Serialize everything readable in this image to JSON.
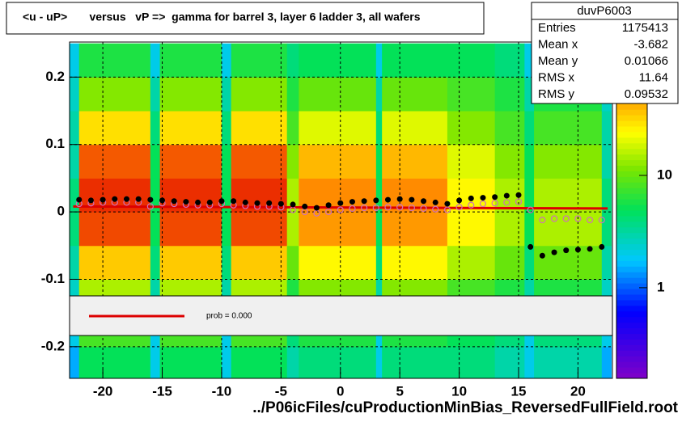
{
  "chart_data": {
    "type": "heatmap-profile",
    "title": "<u - uP>       versus   vP =>  gamma for barrel 3, layer 6 ladder 3, all wafers",
    "x_label": "../P06icFiles/cuProductionMinBias_ReversedFullField.root",
    "xlim": [
      -22.8,
      22.9
    ],
    "ylim": [
      -0.247,
      0.252
    ],
    "xticks": [
      -20,
      -15,
      -10,
      -5,
      0,
      5,
      10,
      15,
      20
    ],
    "yticks": [
      -0.2,
      -0.1,
      0,
      0.1,
      0.2
    ],
    "grid": true,
    "x_edges": [
      -22.8,
      -22,
      -16,
      -15.2,
      -10,
      -9.2,
      -4.5,
      -3.5,
      3,
      3.5,
      9,
      13,
      15.5,
      16.3,
      22,
      22.8
    ],
    "y_edges": [
      -0.25,
      -0.2,
      -0.15,
      -0.1,
      -0.05,
      0,
      0.05,
      0.1,
      0.15,
      0.2,
      0.25
    ],
    "z": [
      [
        1.5,
        2,
        2.5,
        3,
        4,
        4,
        3,
        3,
        2.5,
        2
      ],
      [
        5,
        8,
        15,
        35,
        90,
        110,
        80,
        30,
        12,
        6
      ],
      [
        2,
        2,
        3,
        4,
        5,
        5,
        5,
        4,
        3,
        2
      ],
      [
        5,
        8,
        15,
        35,
        90,
        110,
        80,
        30,
        12,
        6
      ],
      [
        2,
        2,
        3,
        4,
        5,
        5,
        5,
        4,
        3,
        2
      ],
      [
        5,
        8,
        15,
        35,
        90,
        110,
        80,
        30,
        12,
        6
      ],
      [
        3,
        4,
        6,
        10,
        15,
        15,
        12,
        8,
        6,
        4
      ],
      [
        4,
        6,
        12,
        25,
        50,
        55,
        40,
        20,
        10,
        5
      ],
      [
        2,
        2,
        3,
        4,
        5,
        5,
        5,
        4,
        3,
        2
      ],
      [
        4,
        6,
        12,
        25,
        50,
        55,
        40,
        20,
        10,
        5
      ],
      [
        4,
        5,
        8,
        15,
        25,
        25,
        20,
        12,
        8,
        5
      ],
      [
        3,
        4,
        6,
        10,
        15,
        15,
        12,
        8,
        6,
        4
      ],
      [
        2,
        2,
        3,
        4,
        5,
        5,
        5,
        4,
        3,
        2
      ],
      [
        3,
        4,
        6,
        10,
        15,
        15,
        12,
        8,
        6,
        4
      ],
      [
        1.5,
        2,
        2.5,
        3,
        4,
        4,
        3,
        3,
        2.5,
        2
      ]
    ],
    "zlim": [
      0.156,
      154
    ],
    "zticks": [
      1,
      10
    ],
    "log_z": true,
    "x": [
      -22,
      -21,
      -20,
      -19,
      -18,
      -17,
      -16,
      -15,
      -14,
      -13,
      -12,
      -11,
      -10,
      -9,
      -8,
      -7,
      -6,
      -5,
      -4,
      -3,
      -2,
      -1,
      0,
      1,
      2,
      3,
      4,
      5,
      6,
      7,
      8,
      9,
      10,
      11,
      12,
      13,
      14,
      15,
      16,
      17,
      18,
      19,
      20,
      21,
      22
    ],
    "series": [
      {
        "color": "#000000",
        "marker": "filled",
        "values": [
          0.018,
          0.017,
          0.018,
          0.019,
          0.019,
          0.019,
          0.018,
          0.017,
          0.016,
          0.015,
          0.014,
          0.014,
          0.016,
          0.016,
          0.014,
          0.013,
          0.013,
          0.012,
          0.011,
          0.008,
          0.006,
          0.01,
          0.013,
          0.015,
          0.016,
          0.017,
          0.018,
          0.019,
          0.018,
          0.016,
          0.014,
          0.012,
          0.017,
          0.02,
          0.021,
          0.022,
          0.024,
          0.025,
          -0.052,
          -0.065,
          -0.06,
          -0.057,
          -0.056,
          -0.055,
          -0.052
        ]
      },
      {
        "color": "#d070b8",
        "marker": "open",
        "values": [
          0.012,
          0.013,
          0.014,
          0.014,
          0.014,
          0.014,
          0.008,
          0.013,
          0.012,
          0.011,
          0.01,
          0.01,
          0.012,
          0.01,
          0.009,
          0.008,
          0.008,
          0.007,
          0.003,
          0.0,
          -0.002,
          0.0,
          0.003,
          0.005,
          0.006,
          0.006,
          0.007,
          0.007,
          0.006,
          0.005,
          0.004,
          0.003,
          0.007,
          0.01,
          0.012,
          0.013,
          0.014,
          0.015,
          0.003,
          -0.012,
          -0.01,
          -0.01,
          -0.01,
          -0.012,
          -0.012
        ]
      }
    ],
    "fit": {
      "label": "prob = 0.000",
      "color": "#dd0000",
      "x": [
        -22.5,
        22.5
      ],
      "values": [
        0.008,
        0.005
      ]
    },
    "stats": {
      "title": "duvP6003",
      "rows": [
        [
          "Entries",
          1175413
        ],
        [
          "Mean x",
          -3.682
        ],
        [
          "Mean y",
          0.01066
        ],
        [
          "RMS x",
          11.64
        ],
        [
          "RMS y",
          0.09532
        ]
      ]
    }
  }
}
